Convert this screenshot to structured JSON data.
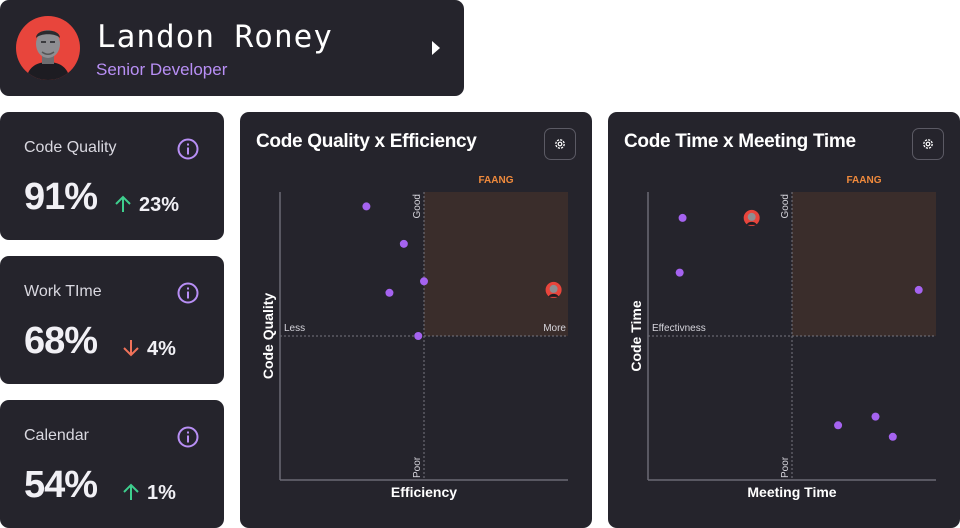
{
  "profile": {
    "name": "Landon Roney",
    "role": "Senior Developer"
  },
  "metrics": [
    {
      "label": "Code Quality",
      "value": "91%",
      "delta": "23%",
      "direction": "up"
    },
    {
      "label": "Work TIme",
      "value": "68%",
      "delta": "4%",
      "direction": "down"
    },
    {
      "label": "Calendar",
      "value": "54%",
      "delta": "1%",
      "direction": "up"
    }
  ],
  "colors": {
    "card": "#25242c",
    "accent": "#b88ff5",
    "point": "#a563f0",
    "up": "#3ecf8e",
    "down": "#f0725a",
    "quadrant": "#3a2d2b",
    "quadrant_label": "#f08a3c",
    "avatar_bg": "#e8453c"
  },
  "charts": [
    {
      "title": "Code Quality x Efficiency",
      "chart_data": {
        "type": "scatter",
        "xlabel": "Efficiency",
        "ylabel": "Code Quality",
        "xlim": [
          0,
          1
        ],
        "ylim": [
          0,
          1
        ],
        "quadrant_label": "FAANG",
        "axis_markers": {
          "x_low": "Less",
          "x_high": "More",
          "y_high": "Good",
          "y_low": "Poor"
        },
        "points": [
          {
            "x": 0.3,
            "y": 0.95
          },
          {
            "x": 0.43,
            "y": 0.82
          },
          {
            "x": 0.38,
            "y": 0.65
          },
          {
            "x": 0.5,
            "y": 0.69
          },
          {
            "x": 0.48,
            "y": 0.5
          }
        ],
        "highlight": {
          "x": 0.95,
          "y": 0.66
        }
      }
    },
    {
      "title": "Code Time x Meeting Time",
      "chart_data": {
        "type": "scatter",
        "xlabel": "Meeting Time",
        "ylabel": "Code Time",
        "xlim": [
          0,
          1
        ],
        "ylim": [
          0,
          1
        ],
        "quadrant_label": "FAANG",
        "axis_markers": {
          "x_low": "Effectivness",
          "x_high": "",
          "y_high": "Good",
          "y_low": "Poor"
        },
        "points": [
          {
            "x": 0.12,
            "y": 0.91
          },
          {
            "x": 0.11,
            "y": 0.72
          },
          {
            "x": 0.94,
            "y": 0.66
          },
          {
            "x": 0.66,
            "y": 0.19
          },
          {
            "x": 0.79,
            "y": 0.22
          },
          {
            "x": 0.85,
            "y": 0.15
          }
        ],
        "highlight": {
          "x": 0.36,
          "y": 0.91
        }
      }
    }
  ]
}
